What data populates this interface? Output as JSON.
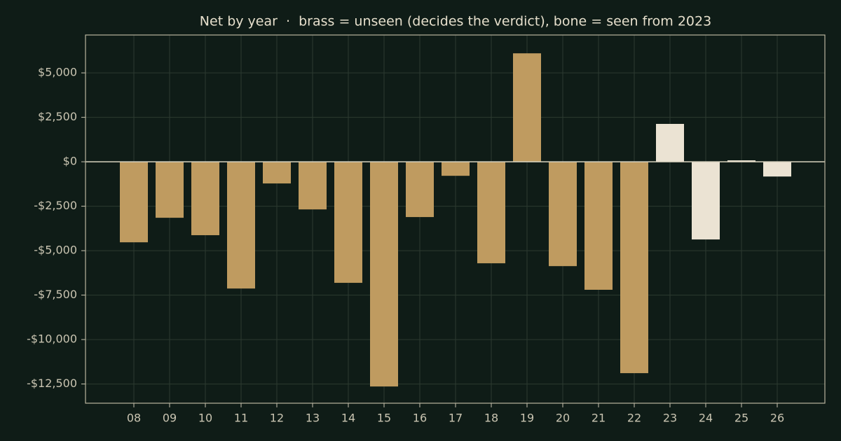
{
  "chart_data": {
    "type": "bar",
    "title": "Net by year  ·  brass = unseen (decides the verdict), bone = seen from 2023",
    "categories": [
      "08",
      "09",
      "10",
      "11",
      "12",
      "13",
      "14",
      "15",
      "16",
      "17",
      "18",
      "19",
      "20",
      "21",
      "22",
      "23",
      "24",
      "25",
      "26"
    ],
    "values": [
      -4530,
      -3150,
      -4130,
      -7130,
      -1220,
      -2680,
      -6810,
      -12640,
      -3110,
      -790,
      -5710,
      6100,
      -5870,
      -7200,
      -11890,
      2130,
      -4370,
      80,
      -830
    ],
    "colors": [
      "#bf9b60",
      "#bf9b60",
      "#bf9b60",
      "#bf9b60",
      "#bf9b60",
      "#bf9b60",
      "#bf9b60",
      "#bf9b60",
      "#bf9b60",
      "#bf9b60",
      "#bf9b60",
      "#bf9b60",
      "#bf9b60",
      "#bf9b60",
      "#bf9b60",
      "#ebe3d3",
      "#ebe3d3",
      "#ebe3d3",
      "#ebe3d3"
    ],
    "ylim": [
      -13580,
      7130
    ],
    "yticks": [
      {
        "value": -12500,
        "label": "-$12,500"
      },
      {
        "value": -10000,
        "label": "-$10,000"
      },
      {
        "value": -7500,
        "label": "-$7,500"
      },
      {
        "value": -5000,
        "label": "-$5,000"
      },
      {
        "value": -2500,
        "label": "-$2,500"
      },
      {
        "value": 0,
        "label": "$0"
      },
      {
        "value": 2500,
        "label": "$2,500"
      },
      {
        "value": 5000,
        "label": "$5,000"
      }
    ],
    "grid": true
  }
}
